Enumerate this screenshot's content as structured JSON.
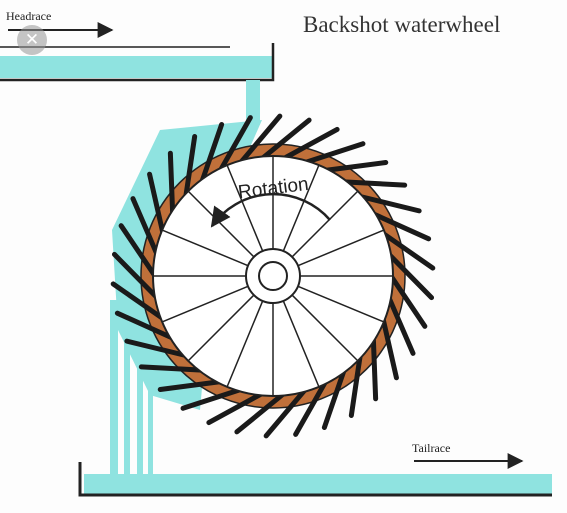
{
  "title": "Backshot waterwheel",
  "labels": {
    "headrace": "Headrace",
    "tailrace": "Tailrace",
    "rotation": "Rotation"
  },
  "colors": {
    "water": "#8fe3e0",
    "wheel_rim": "#c0703a",
    "blades": "#1a1a1a",
    "outline": "#222222"
  },
  "icons": {
    "close": "close-icon"
  }
}
